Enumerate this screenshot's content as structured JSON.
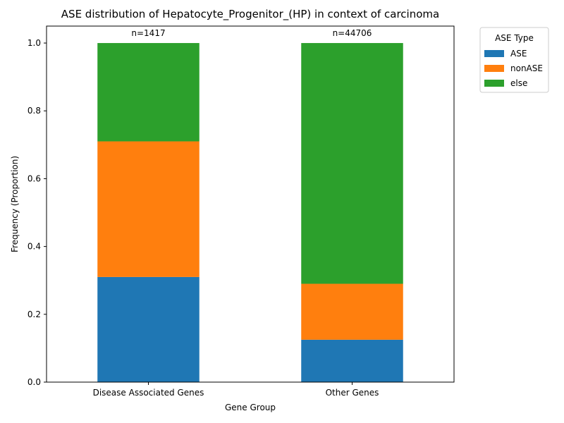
{
  "chart_data": {
    "type": "bar",
    "stacked": true,
    "title": "ASE distribution of Hepatocyte_Progenitor_(HP) in context of carcinoma",
    "xlabel": "Gene Group",
    "ylabel": "Frequency (Proportion)",
    "categories": [
      "Disease Associated Genes",
      "Other Genes"
    ],
    "annotations": [
      "n=1417",
      "n=44706"
    ],
    "series": [
      {
        "name": "ASE",
        "color": "#1f77b4",
        "values": [
          0.31,
          0.125
        ]
      },
      {
        "name": "nonASE",
        "color": "#ff7f0e",
        "values": [
          0.4,
          0.165
        ]
      },
      {
        "name": "else",
        "color": "#2ca02c",
        "values": [
          0.29,
          0.71
        ]
      }
    ],
    "ylim": [
      0,
      1.05
    ],
    "yticks": [
      "0.0",
      "0.2",
      "0.4",
      "0.6",
      "0.8",
      "1.0"
    ],
    "legend": {
      "title": "ASE Type",
      "position": "outside-right"
    },
    "grid": false
  }
}
